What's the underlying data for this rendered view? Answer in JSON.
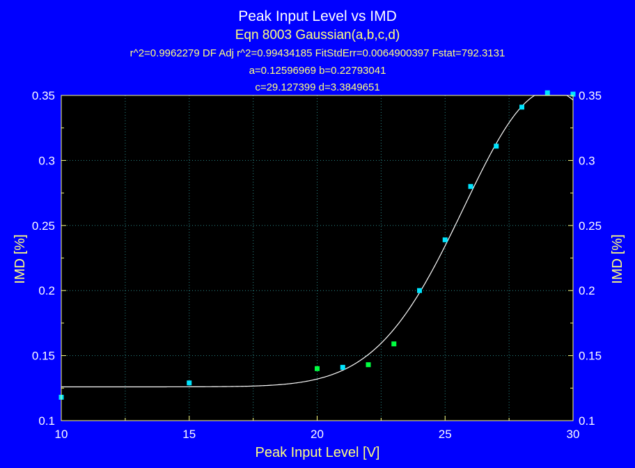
{
  "colors": {
    "background": "#0000ff",
    "plot_area": "#000000",
    "frame": "#ffff80",
    "grid": "#2a8a8a",
    "fit_curve": "#ffffff",
    "point_cyan": "#00e5ff",
    "point_green": "#00ff40"
  },
  "chart_data": {
    "type": "scatter",
    "title": "Peak Input Level vs IMD",
    "subtitle": "Eqn 8003  Gaussian(a,b,c,d)",
    "stats": [
      "r^2=0.9962279  DF Adj r^2=0.99434185  FitStdErr=0.0064900397  Fstat=792.3131",
      "a=0.12596969 b=0.22793041",
      "c=29.127399 d=3.3849651"
    ],
    "xlabel": "Peak Input Level [V]",
    "ylabel": "IMD [%]",
    "xlim": [
      10,
      30
    ],
    "ylim": [
      0.1,
      0.35
    ],
    "x_ticks": [
      "10",
      "15",
      "20",
      "25",
      "30"
    ],
    "y_ticks": [
      "0.1",
      "0.15",
      "0.2",
      "0.25",
      "0.3",
      "0.35"
    ],
    "grid": true,
    "fit": {
      "equation": "Gaussian(a,b,c,d)",
      "a": 0.12596969,
      "b": 0.22793041,
      "c": 29.127399,
      "d": 3.3849651
    },
    "series": [
      {
        "color": "cyan",
        "points": [
          [
            10,
            0.118
          ],
          [
            15,
            0.129
          ],
          [
            21,
            0.141
          ],
          [
            24,
            0.2
          ],
          [
            25,
            0.239
          ],
          [
            26,
            0.28
          ],
          [
            27,
            0.311
          ],
          [
            28,
            0.341
          ],
          [
            29,
            0.352
          ],
          [
            30,
            0.351
          ]
        ]
      },
      {
        "color": "green",
        "points": [
          [
            20,
            0.14
          ],
          [
            22,
            0.143
          ],
          [
            23,
            0.159
          ]
        ]
      }
    ]
  }
}
